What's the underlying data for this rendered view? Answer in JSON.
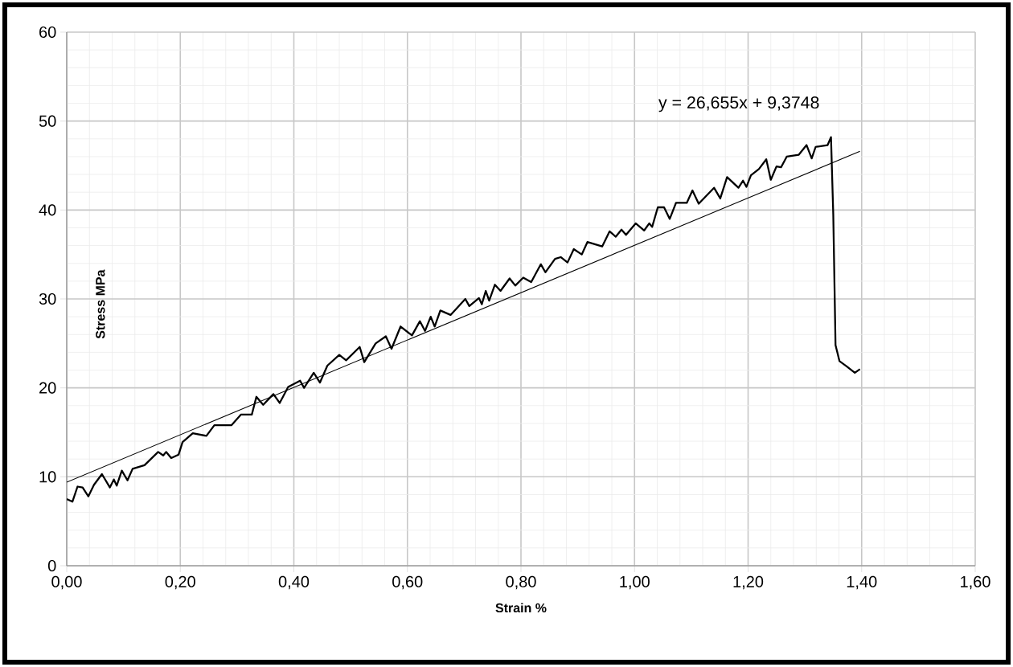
{
  "chart_data": {
    "type": "line",
    "xlabel": "Strain %",
    "ylabel": "Stress MPa",
    "annotations": [
      "y = 26,655x + 9,3748"
    ],
    "series": [
      {
        "color": "#000000",
        "x": [
          0.0,
          0.01,
          0.019,
          0.028,
          0.038,
          0.048,
          0.062,
          0.076,
          0.083,
          0.088,
          0.097,
          0.107,
          0.116,
          0.137,
          0.161,
          0.17,
          0.175,
          0.184,
          0.197,
          0.204,
          0.222,
          0.246,
          0.26,
          0.29,
          0.307,
          0.326,
          0.334,
          0.346,
          0.364,
          0.375,
          0.39,
          0.411,
          0.418,
          0.435,
          0.446,
          0.459,
          0.48,
          0.492,
          0.516,
          0.524,
          0.544,
          0.562,
          0.572,
          0.588,
          0.608,
          0.622,
          0.631,
          0.641,
          0.648,
          0.658,
          0.676,
          0.702,
          0.709,
          0.726,
          0.731,
          0.738,
          0.744,
          0.754,
          0.764,
          0.78,
          0.79,
          0.804,
          0.818,
          0.835,
          0.843,
          0.86,
          0.87,
          0.882,
          0.893,
          0.907,
          0.917,
          0.943,
          0.956,
          0.967,
          0.977,
          0.985,
          1.002,
          1.017,
          1.026,
          1.031,
          1.041,
          1.052,
          1.062,
          1.073,
          1.092,
          1.102,
          1.113,
          1.14,
          1.151,
          1.163,
          1.183,
          1.191,
          1.197,
          1.205,
          1.219,
          1.232,
          1.24,
          1.25,
          1.258,
          1.268,
          1.289,
          1.303,
          1.312,
          1.319,
          1.34,
          1.346,
          1.35,
          1.354,
          1.361,
          1.374,
          1.388,
          1.397
        ],
        "values": [
          7.5,
          7.2,
          8.9,
          8.8,
          7.8,
          9.1,
          10.3,
          8.8,
          9.7,
          9.0,
          10.7,
          9.6,
          10.9,
          11.3,
          12.8,
          12.4,
          12.8,
          12.1,
          12.5,
          13.9,
          14.9,
          14.6,
          15.8,
          15.8,
          17.0,
          17.0,
          19.0,
          18.1,
          19.3,
          18.3,
          20.1,
          20.8,
          20.0,
          21.7,
          20.6,
          22.5,
          23.7,
          23.1,
          24.6,
          22.9,
          25.0,
          25.8,
          24.4,
          26.9,
          25.9,
          27.5,
          26.4,
          28.0,
          26.9,
          28.7,
          28.2,
          30.0,
          29.2,
          30.1,
          29.4,
          30.9,
          29.8,
          31.6,
          30.9,
          32.3,
          31.5,
          32.4,
          31.9,
          33.9,
          33.0,
          34.5,
          34.7,
          34.1,
          35.6,
          35.0,
          36.4,
          35.9,
          37.6,
          37.0,
          37.8,
          37.2,
          38.5,
          37.7,
          38.5,
          38.1,
          40.3,
          40.3,
          39.0,
          40.8,
          40.8,
          42.2,
          40.7,
          42.5,
          41.3,
          43.7,
          42.5,
          43.3,
          42.6,
          43.9,
          44.6,
          45.7,
          43.4,
          44.9,
          44.8,
          46.0,
          46.2,
          47.3,
          45.8,
          47.1,
          47.3,
          48.2,
          39.5,
          24.8,
          23.0,
          22.4,
          21.7,
          22.1
        ]
      },
      {
        "color": "#000000",
        "x": [
          0.0,
          1.397
        ],
        "values": [
          9.4,
          46.6
        ]
      }
    ],
    "xlim": [
      0,
      1.6
    ],
    "ylim": [
      0,
      60
    ],
    "xticks": [
      {
        "value": 0,
        "label": "0,00"
      },
      {
        "value": 0.2,
        "label": "0,20"
      },
      {
        "value": 0.4,
        "label": "0,40"
      },
      {
        "value": 0.6,
        "label": "0,60"
      },
      {
        "value": 0.8,
        "label": "0,80"
      },
      {
        "value": 1.0,
        "label": "1,00"
      },
      {
        "value": 1.2,
        "label": "1,20"
      },
      {
        "value": 1.4,
        "label": "1,40"
      },
      {
        "value": 1.6,
        "label": "1,60"
      }
    ],
    "yticks": [
      0,
      10,
      20,
      30,
      40,
      50,
      60
    ],
    "grid": true,
    "marker": "none",
    "line_style": "solid"
  }
}
